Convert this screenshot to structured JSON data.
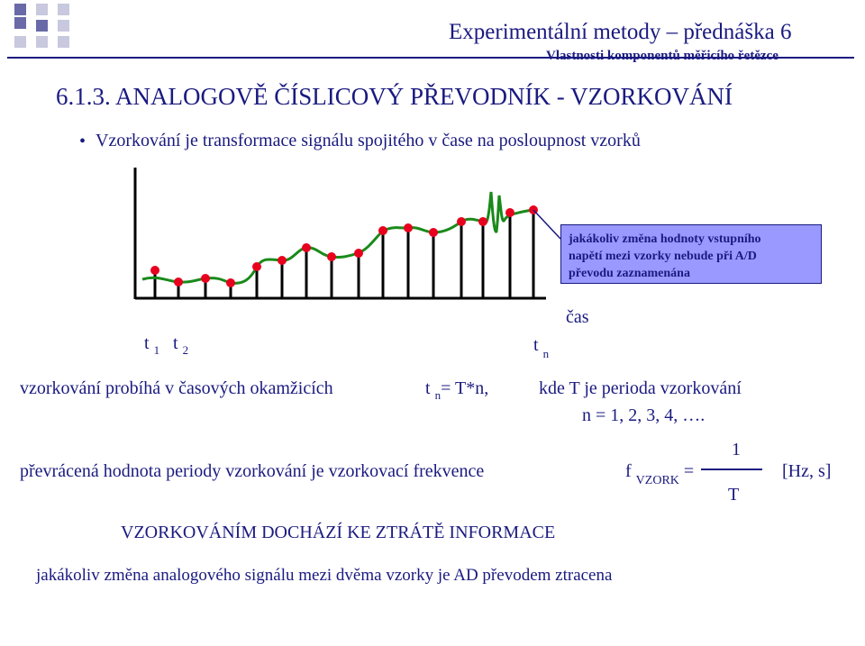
{
  "header": {
    "title": "Experimentální metody – přednáška 6",
    "subtitle": "Vlastnosti komponentů měřicího řetězce"
  },
  "section_title": "6.1.3. ANALOGOVĚ ČÍSLICOVÝ PŘEVODNÍK - VZORKOVÁNÍ",
  "bullet": "Vzorkování je transformace signálu spojitého v čase na posloupnost vzorků",
  "diagram": {
    "note": [
      "jakákoliv změna hodnoty vstupního",
      "napětí mezi vzorky nebude při A/D",
      "převodu zaznamenána"
    ],
    "time_label": "čas",
    "t1": {
      "base": "t",
      "sub": "1"
    },
    "t2": {
      "base": "t",
      "sub": "2"
    },
    "tn": {
      "base": "t",
      "sub": "n"
    },
    "colors": {
      "signal": "#1a8a1a",
      "sample": "#e8001e",
      "axis": "#000000",
      "box": "#9999ff"
    }
  },
  "sampling": {
    "left_text": "vzorkování probíhá v časových okamžicích",
    "formula_base": "t",
    "formula_sub": "n",
    "formula_rest": "= T*n,",
    "where": "kde T  je perioda vzorkování",
    "n_values": "n = 1, 2, 3, 4, …."
  },
  "frequency": {
    "text": "převrácená hodnota periody vzorkování je vzorkovací frekvence",
    "f_symbol": "f",
    "f_sub": "VZORK",
    "equals": "=",
    "numerator": "1",
    "denominator": "T",
    "units": "[Hz, s]"
  },
  "warning": "VZORKOVÁNÍM DOCHÁZÍ KE ZTRÁTĚ INFORMACE",
  "final_note": "jakákoliv změna analogového signálu mezi dvěma vzorky je AD převodem ztracena"
}
